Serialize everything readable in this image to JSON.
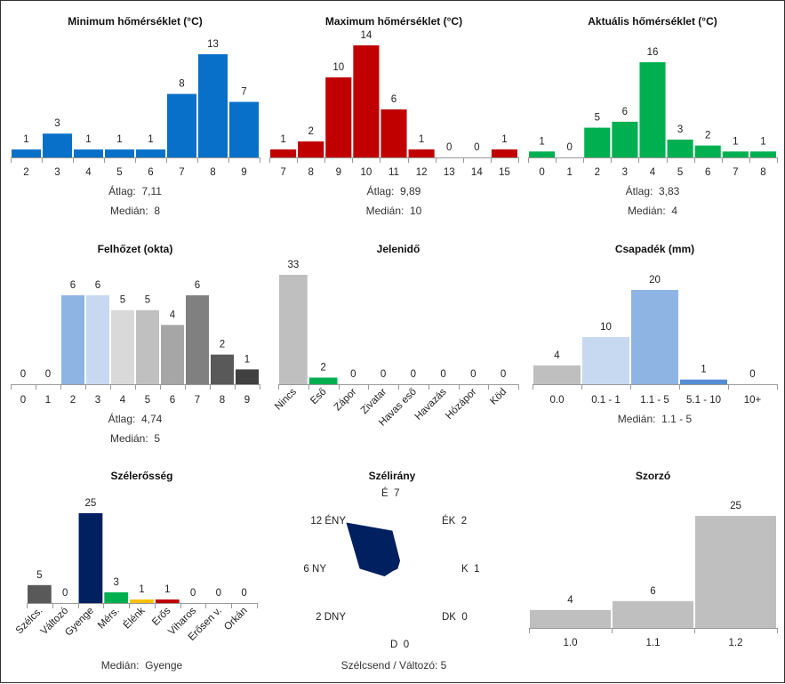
{
  "chart_data": [
    {
      "id": "min-temp",
      "type": "bar",
      "title": "Minimum hőmérséklet (°C)",
      "categories": [
        "2",
        "3",
        "4",
        "5",
        "6",
        "7",
        "8",
        "9"
      ],
      "values": [
        1,
        3,
        1,
        1,
        1,
        8,
        13,
        7
      ],
      "colors": [
        "#0870c8"
      ],
      "ylim": [
        0,
        13
      ],
      "stats": [
        {
          "label": "Átlag:",
          "value": "7,11"
        },
        {
          "label": "Medián:",
          "value": "8"
        }
      ]
    },
    {
      "id": "max-temp",
      "type": "bar",
      "title": "Maximum hőmérséklet (°C)",
      "categories": [
        "7",
        "8",
        "9",
        "10",
        "11",
        "12",
        "13",
        "14",
        "15"
      ],
      "values": [
        1,
        2,
        10,
        14,
        6,
        1,
        0,
        0,
        1
      ],
      "colors": [
        "#c00000"
      ],
      "ylim": [
        0,
        14
      ],
      "stats": [
        {
          "label": "Átlag:",
          "value": "9,89"
        },
        {
          "label": "Medián:",
          "value": "10"
        }
      ]
    },
    {
      "id": "cur-temp",
      "type": "bar",
      "title": "Aktuális hőmérséklet (°C)",
      "categories": [
        "0",
        "1",
        "2",
        "3",
        "4",
        "5",
        "6",
        "7",
        "8"
      ],
      "values": [
        1,
        0,
        5,
        6,
        16,
        3,
        2,
        1,
        1
      ],
      "colors": [
        "#00b050"
      ],
      "ylim": [
        0,
        16
      ],
      "stats": [
        {
          "label": "Átlag:",
          "value": "3,83"
        },
        {
          "label": "Medián:",
          "value": "4"
        }
      ]
    },
    {
      "id": "cloud",
      "type": "bar",
      "title": "Felhőzet (okta)",
      "categories": [
        "0",
        "1",
        "2",
        "3",
        "4",
        "5",
        "6",
        "7",
        "8",
        "9"
      ],
      "values": [
        0,
        0,
        6,
        6,
        5,
        5,
        4,
        6,
        2,
        1
      ],
      "colors": [
        "#cccccc",
        "#cccccc",
        "#8eb4e3",
        "#c6d9f1",
        "#d9d9d9",
        "#c0c0c0",
        "#a6a6a6",
        "#808080",
        "#595959",
        "#404040"
      ],
      "ylim": [
        0,
        6
      ],
      "stats": [
        {
          "label": "Átlag:",
          "value": "4,74"
        },
        {
          "label": "Medián:",
          "value": "5"
        }
      ]
    },
    {
      "id": "weather",
      "type": "bar",
      "title": "Jelenidő",
      "categories": [
        "Nincs",
        "Eső",
        "Zápor",
        "Zivatar",
        "Havas eső",
        "Havazás",
        "Hózápor",
        "Köd"
      ],
      "values": [
        33,
        2,
        0,
        0,
        0,
        0,
        0,
        0
      ],
      "colors": [
        "#bfbfbf",
        "#00b050",
        "#bfbfbf",
        "#bfbfbf",
        "#bfbfbf",
        "#bfbfbf",
        "#bfbfbf",
        "#bfbfbf"
      ],
      "ylim": [
        0,
        33
      ],
      "rotated_ticks": true,
      "stats": []
    },
    {
      "id": "precip",
      "type": "bar",
      "title": "Csapadék (mm)",
      "categories": [
        "0.0",
        "0.1 - 1",
        "1.1 - 5",
        "5.1 - 10",
        "10+"
      ],
      "values": [
        4,
        10,
        20,
        1,
        0
      ],
      "colors": [
        "#bfbfbf",
        "#c6d9f1",
        "#8eb4e3",
        "#558ed5",
        "#bfbfbf"
      ],
      "ylim": [
        0,
        20
      ],
      "stats": [
        {
          "label": "Medián:",
          "value": "1.1 - 5"
        }
      ]
    },
    {
      "id": "wind-speed",
      "type": "bar",
      "title": "Szélerősség",
      "categories": [
        "Szélcs.",
        "Változó",
        "Gyenge",
        "Mérs.",
        "Élénk",
        "Erős",
        "Viharos",
        "Erősen v.",
        "Orkán"
      ],
      "values": [
        5,
        0,
        25,
        3,
        1,
        1,
        0,
        0,
        0
      ],
      "colors": [
        "#595959",
        "#bfbfbf",
        "#002060",
        "#00b050",
        "#ffc000",
        "#c00000",
        "#bfbfbf",
        "#bfbfbf",
        "#bfbfbf"
      ],
      "ylim": [
        0,
        25
      ],
      "rotated_ticks": true,
      "stats": [
        {
          "label": "Medián:",
          "value": "Gyenge"
        }
      ]
    },
    {
      "id": "wind-dir",
      "type": "radar",
      "title": "Szélirány",
      "directions": [
        {
          "label": "É",
          "value": 7
        },
        {
          "label": "ÉK",
          "value": 2
        },
        {
          "label": "K",
          "value": 1
        },
        {
          "label": "DK",
          "value": 0
        },
        {
          "label": "D",
          "value": 0
        },
        {
          "label": "DNY",
          "value": 2
        },
        {
          "label": "NY",
          "value": 6
        },
        {
          "label": "ÉNY",
          "value": 12
        }
      ],
      "color": "#002060",
      "max": 12,
      "footer": "Szélcsend / Változó: 5"
    },
    {
      "id": "multiplier",
      "type": "bar",
      "title": "Szorzó",
      "categories": [
        "1.0",
        "1.1",
        "1.2"
      ],
      "values": [
        4,
        6,
        25
      ],
      "colors": [
        "#bfbfbf"
      ],
      "ylim": [
        0,
        25
      ],
      "stats": []
    }
  ]
}
